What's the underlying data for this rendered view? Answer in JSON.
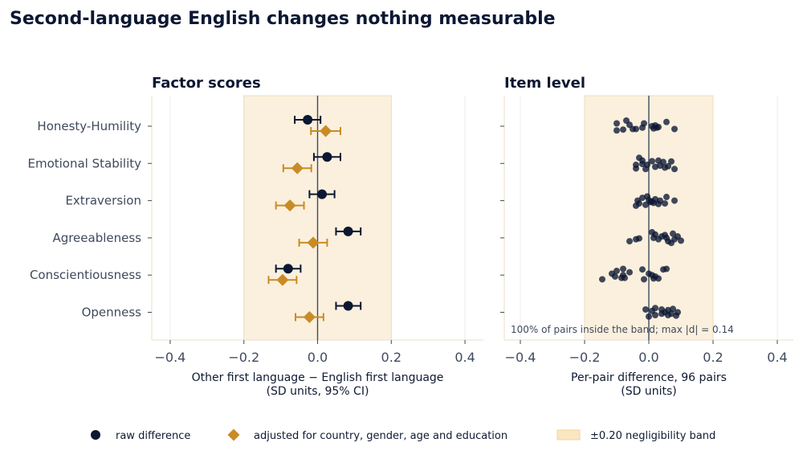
{
  "title": "Second-language English changes nothing measurable",
  "colors": {
    "raw": "#0c1733",
    "adjusted": "#c98b26",
    "band_fill": "#fbf0dd",
    "band_edge": "#f0ddb8",
    "zero_line": "#3e4a5e",
    "grid": "#ececec",
    "frame": "#eadfc8"
  },
  "chart_data": [
    {
      "type": "forest",
      "title": "Factor scores",
      "categories": [
        "Honesty-Humility",
        "Emotional Stability",
        "Extraversion",
        "Agreeableness",
        "Conscientiousness",
        "Openness"
      ],
      "xlim": [
        -0.45,
        0.45
      ],
      "xticks": [
        -0.4,
        -0.2,
        0.0,
        0.2,
        0.4
      ],
      "xtick_labels": [
        "−0.4",
        "−0.2",
        "0.0",
        "0.2",
        "0.4"
      ],
      "xlabel": [
        "Other first language − English first language",
        "(SD units, 95% CI)"
      ],
      "band": [
        -0.2,
        0.2
      ],
      "grid": "vertical",
      "series": [
        {
          "name": "raw difference",
          "marker": "circle",
          "values": [
            -0.027,
            0.026,
            0.012,
            0.083,
            -0.08,
            0.083
          ],
          "ci_low": [
            -0.062,
            -0.01,
            -0.022,
            0.05,
            -0.113,
            0.05
          ],
          "ci_high": [
            0.008,
            0.062,
            0.046,
            0.117,
            -0.046,
            0.117
          ]
        },
        {
          "name": "adjusted for country, gender, age and education",
          "marker": "diamond",
          "values": [
            0.022,
            -0.055,
            -0.075,
            -0.012,
            -0.095,
            -0.022
          ],
          "ci_low": [
            -0.018,
            -0.093,
            -0.113,
            -0.05,
            -0.133,
            -0.06
          ],
          "ci_high": [
            0.062,
            -0.017,
            -0.037,
            0.026,
            -0.057,
            0.016
          ]
        }
      ]
    },
    {
      "type": "scatter",
      "title": "Item level",
      "categories": [
        "Honesty-Humility",
        "Emotional Stability",
        "Extraversion",
        "Agreeableness",
        "Conscientiousness",
        "Openness"
      ],
      "xlim": [
        -0.45,
        0.45
      ],
      "xticks": [
        -0.4,
        -0.2,
        0.0,
        0.2,
        0.4
      ],
      "xtick_labels": [
        "−0.4",
        "−0.2",
        "0.0",
        "0.2",
        "0.4"
      ],
      "xlabel": [
        "Per-pair difference, 96 pairs",
        "(SD units)"
      ],
      "band": [
        -0.2,
        0.2
      ],
      "annotation": "100% of pairs inside the band; max |d| = 0.14",
      "series": [
        {
          "name": "item pairs",
          "points": [
            {
              "cat": 0,
              "x": -0.07,
              "jitter": -0.2
            },
            {
              "cat": 0,
              "x": -0.05,
              "jitter": 0.1
            },
            {
              "cat": 0,
              "x": -0.1,
              "jitter": -0.1
            },
            {
              "cat": 0,
              "x": -0.1,
              "jitter": 0.15
            },
            {
              "cat": 0,
              "x": -0.06,
              "jitter": -0.05
            },
            {
              "cat": 0,
              "x": -0.02,
              "jitter": 0.05
            },
            {
              "cat": 0,
              "x": -0.04,
              "jitter": 0.1
            },
            {
              "cat": 0,
              "x": 0.01,
              "jitter": 0.0
            },
            {
              "cat": 0,
              "x": 0.02,
              "jitter": -0.03
            },
            {
              "cat": 0,
              "x": 0.03,
              "jitter": 0.03
            },
            {
              "cat": 0,
              "x": 0.055,
              "jitter": -0.15
            },
            {
              "cat": 0,
              "x": 0.08,
              "jitter": 0.1
            },
            {
              "cat": 0,
              "x": 0.025,
              "jitter": 0.05
            },
            {
              "cat": 0,
              "x": -0.015,
              "jitter": -0.1
            },
            {
              "cat": 0,
              "x": 0.015,
              "jitter": 0.08
            },
            {
              "cat": 0,
              "x": -0.08,
              "jitter": 0.12
            },
            {
              "cat": 1,
              "x": -0.03,
              "jitter": -0.2
            },
            {
              "cat": 1,
              "x": -0.02,
              "jitter": -0.1
            },
            {
              "cat": 1,
              "x": -0.04,
              "jitter": 0.05
            },
            {
              "cat": 1,
              "x": -0.01,
              "jitter": 0.2
            },
            {
              "cat": 1,
              "x": -0.04,
              "jitter": 0.18
            },
            {
              "cat": 1,
              "x": 0.01,
              "jitter": -0.08
            },
            {
              "cat": 1,
              "x": 0.03,
              "jitter": -0.1
            },
            {
              "cat": 1,
              "x": 0.045,
              "jitter": -0.05
            },
            {
              "cat": 1,
              "x": 0.06,
              "jitter": 0.1
            },
            {
              "cat": 1,
              "x": 0.08,
              "jitter": 0.2
            },
            {
              "cat": 1,
              "x": 0.035,
              "jitter": 0.08
            },
            {
              "cat": 1,
              "x": 0.07,
              "jitter": -0.07
            },
            {
              "cat": 1,
              "x": -0.005,
              "jitter": 0.05
            },
            {
              "cat": 1,
              "x": 0.05,
              "jitter": 0.15
            },
            {
              "cat": 1,
              "x": -0.02,
              "jitter": 0.02
            },
            {
              "cat": 1,
              "x": 0.02,
              "jitter": 0.12
            },
            {
              "cat": 2,
              "x": -0.02,
              "jitter": -0.1
            },
            {
              "cat": 2,
              "x": -0.03,
              "jitter": 0.1
            },
            {
              "cat": 2,
              "x": -0.005,
              "jitter": -0.15
            },
            {
              "cat": 2,
              "x": 0.005,
              "jitter": 0.05
            },
            {
              "cat": 2,
              "x": 0.02,
              "jitter": -0.05
            },
            {
              "cat": 2,
              "x": 0.035,
              "jitter": 0.0
            },
            {
              "cat": 2,
              "x": 0.05,
              "jitter": 0.1
            },
            {
              "cat": 2,
              "x": 0.055,
              "jitter": -0.13
            },
            {
              "cat": 2,
              "x": 0.08,
              "jitter": 0.0
            },
            {
              "cat": 2,
              "x": -0.035,
              "jitter": 0.0
            },
            {
              "cat": 2,
              "x": -0.01,
              "jitter": 0.15
            },
            {
              "cat": 2,
              "x": 0.015,
              "jitter": 0.08
            },
            {
              "cat": 2,
              "x": 0.03,
              "jitter": 0.12
            },
            {
              "cat": 2,
              "x": -0.04,
              "jitter": 0.18
            },
            {
              "cat": 2,
              "x": 0.0,
              "jitter": -0.02
            },
            {
              "cat": 2,
              "x": 0.01,
              "jitter": 0.03
            },
            {
              "cat": 3,
              "x": 0.01,
              "jitter": -0.2
            },
            {
              "cat": 3,
              "x": 0.02,
              "jitter": -0.12
            },
            {
              "cat": 3,
              "x": 0.04,
              "jitter": -0.05
            },
            {
              "cat": 3,
              "x": 0.055,
              "jitter": 0.0
            },
            {
              "cat": 3,
              "x": 0.075,
              "jitter": -0.15
            },
            {
              "cat": 3,
              "x": 0.09,
              "jitter": -0.05
            },
            {
              "cat": 3,
              "x": 0.1,
              "jitter": 0.1
            },
            {
              "cat": 3,
              "x": 0.06,
              "jitter": 0.12
            },
            {
              "cat": 3,
              "x": 0.07,
              "jitter": 0.18
            },
            {
              "cat": 3,
              "x": 0.03,
              "jitter": 0.05
            },
            {
              "cat": 3,
              "x": -0.03,
              "jitter": 0.02
            },
            {
              "cat": 3,
              "x": -0.04,
              "jitter": 0.05
            },
            {
              "cat": 3,
              "x": -0.06,
              "jitter": 0.12
            },
            {
              "cat": 3,
              "x": 0.015,
              "jitter": 0.0
            },
            {
              "cat": 3,
              "x": 0.08,
              "jitter": 0.05
            },
            {
              "cat": 3,
              "x": 0.05,
              "jitter": -0.1
            },
            {
              "cat": 4,
              "x": -0.08,
              "jitter": -0.22
            },
            {
              "cat": 4,
              "x": -0.1,
              "jitter": -0.15
            },
            {
              "cat": 4,
              "x": -0.115,
              "jitter": -0.05
            },
            {
              "cat": 4,
              "x": -0.08,
              "jitter": 0.0
            },
            {
              "cat": 4,
              "x": -0.06,
              "jitter": -0.1
            },
            {
              "cat": 4,
              "x": -0.105,
              "jitter": 0.05
            },
            {
              "cat": 4,
              "x": -0.145,
              "jitter": 0.15
            },
            {
              "cat": 4,
              "x": -0.085,
              "jitter": 0.1
            },
            {
              "cat": 4,
              "x": -0.075,
              "jitter": 0.1
            },
            {
              "cat": 4,
              "x": -0.02,
              "jitter": -0.2
            },
            {
              "cat": 4,
              "x": 0.0,
              "jitter": -0.05
            },
            {
              "cat": 4,
              "x": 0.01,
              "jitter": 0.0
            },
            {
              "cat": 4,
              "x": 0.02,
              "jitter": 0.05
            },
            {
              "cat": 4,
              "x": 0.03,
              "jitter": 0.12
            },
            {
              "cat": 4,
              "x": 0.045,
              "jitter": -0.2
            },
            {
              "cat": 4,
              "x": 0.055,
              "jitter": -0.22
            },
            {
              "cat": 4,
              "x": -0.015,
              "jitter": 0.15
            },
            {
              "cat": 4,
              "x": 0.015,
              "jitter": 0.12
            },
            {
              "cat": 5,
              "x": -0.01,
              "jitter": -0.1
            },
            {
              "cat": 5,
              "x": 0.01,
              "jitter": -0.05
            },
            {
              "cat": 5,
              "x": 0.02,
              "jitter": -0.15
            },
            {
              "cat": 5,
              "x": 0.04,
              "jitter": -0.1
            },
            {
              "cat": 5,
              "x": 0.06,
              "jitter": -0.08
            },
            {
              "cat": 5,
              "x": 0.075,
              "jitter": -0.12
            },
            {
              "cat": 5,
              "x": 0.09,
              "jitter": 0.0
            },
            {
              "cat": 5,
              "x": 0.085,
              "jitter": 0.12
            },
            {
              "cat": 5,
              "x": 0.06,
              "jitter": 0.1
            },
            {
              "cat": 5,
              "x": 0.04,
              "jitter": 0.05
            },
            {
              "cat": 5,
              "x": 0.0,
              "jitter": 0.15
            },
            {
              "cat": 5,
              "x": 0.02,
              "jitter": 0.1
            },
            {
              "cat": 5,
              "x": 0.05,
              "jitter": 0.0
            },
            {
              "cat": 5,
              "x": 0.07,
              "jitter": 0.05
            }
          ]
        }
      ]
    }
  ],
  "legend": {
    "placement": "bottom",
    "items": [
      {
        "label": "raw difference",
        "marker": "circle"
      },
      {
        "label": "adjusted for country, gender, age and education",
        "marker": "diamond"
      },
      {
        "label": "±0.20 negligibility band",
        "marker": "band"
      }
    ]
  }
}
